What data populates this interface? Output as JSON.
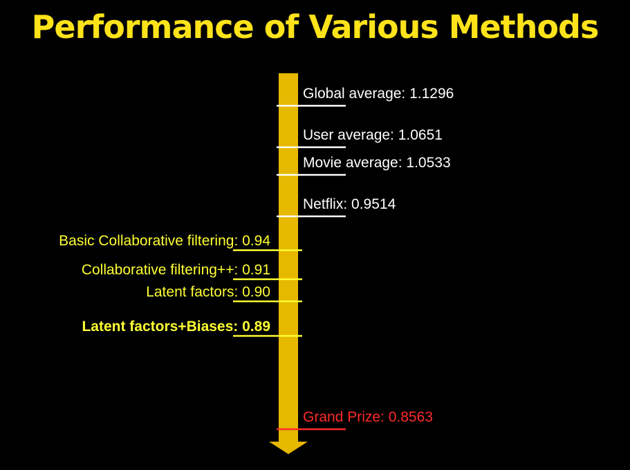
{
  "title": "Performance of Various Methods",
  "colors": {
    "background": "#000000",
    "title": "#ffe31a",
    "arrow": "#e6b800",
    "white_label": "#ffffff",
    "yellow_label": "#ffff33",
    "red_label": "#ff2a2a"
  },
  "markers": [
    {
      "id": "global-average",
      "label": "Global average: 1.1296",
      "value": 1.1296,
      "side": "right",
      "color": "white",
      "bold": false
    },
    {
      "id": "user-average",
      "label": "User average: 1.0651",
      "value": 1.0651,
      "side": "right",
      "color": "white",
      "bold": false
    },
    {
      "id": "movie-average",
      "label": "Movie average: 1.0533",
      "value": 1.0533,
      "side": "right",
      "color": "white",
      "bold": false
    },
    {
      "id": "netflix",
      "label": "Netflix: 0.9514",
      "value": 0.9514,
      "side": "right",
      "color": "white",
      "bold": false
    },
    {
      "id": "basic-collaborative-filtering",
      "label": "Basic Collaborative filtering: 0.94",
      "value": 0.94,
      "side": "left",
      "color": "yellow",
      "bold": false
    },
    {
      "id": "collaborative-filtering-plus",
      "label": "Collaborative filtering++: 0.91",
      "value": 0.91,
      "side": "left",
      "color": "yellow",
      "bold": false
    },
    {
      "id": "latent-factors",
      "label": "Latent factors: 0.90",
      "value": 0.9,
      "side": "left",
      "color": "yellow",
      "bold": false
    },
    {
      "id": "latent-factors-biases",
      "label": "Latent factors+Biases: 0.89",
      "value": 0.89,
      "side": "left",
      "color": "yellow",
      "bold": true
    },
    {
      "id": "grand-prize",
      "label": "Grand Prize: 0.8563",
      "value": 0.8563,
      "side": "right",
      "color": "red",
      "bold": false
    }
  ]
}
